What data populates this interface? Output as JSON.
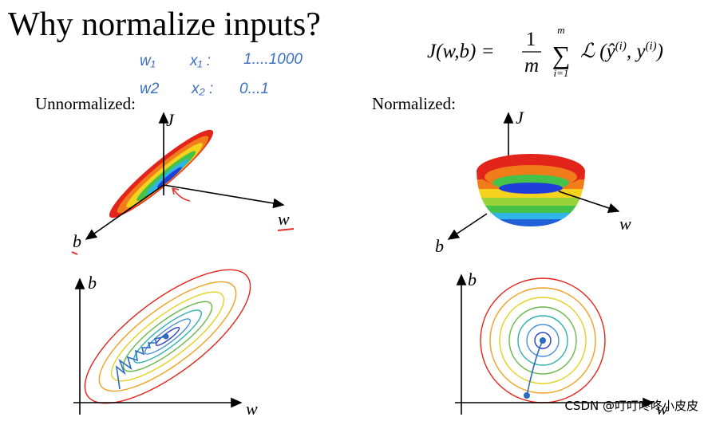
{
  "title": "Why normalize inputs?",
  "formula": {
    "lhs": "J(w,b) =",
    "numerator": "1",
    "denominator": "m",
    "sum_symbol": "∑",
    "sum_top": "m",
    "sum_bottom": "i=1",
    "term": [
      "ℒ (ŷ",
      "(i)",
      ", y",
      "(i)",
      ")"
    ]
  },
  "notes": [
    {
      "weight": "w₁",
      "feature": "x₁ :",
      "range": "1....1000"
    },
    {
      "weight": "w2",
      "feature": "x₂ :",
      "range": "0...1"
    }
  ],
  "panels": [
    {
      "label": "Unnormalized:",
      "surface_axes": {
        "vertical": "J",
        "right": "w",
        "left": "b"
      },
      "contour_axes": {
        "vertical": "b",
        "horizontal": "w"
      }
    },
    {
      "label": "Normalized:",
      "surface_axes": {
        "vertical": "J",
        "right": "w",
        "left": "b"
      },
      "contour_axes": {
        "vertical": "b",
        "horizontal": "w"
      }
    }
  ],
  "watermark": "CSDN @叮叮咚咚小皮皮"
}
